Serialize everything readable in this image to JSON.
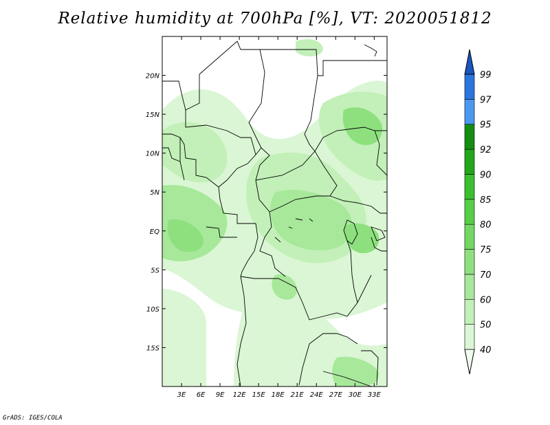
{
  "title": "Relative humidity at 700hPa [%], VT: 2020051812",
  "credit": "GrADS: IGES/COLA",
  "map": {
    "lon_ticks": [
      "3E",
      "6E",
      "9E",
      "12E",
      "15E",
      "18E",
      "21E",
      "24E",
      "27E",
      "30E",
      "33E"
    ],
    "lat_ticks": [
      "20N",
      "15N",
      "10N",
      "5N",
      "EQ",
      "5S",
      "10S",
      "15S"
    ],
    "lon_range": [
      0,
      35
    ],
    "lat_range": [
      -20,
      25
    ]
  },
  "colorbar": {
    "levels": [
      "40",
      "50",
      "60",
      "70",
      "75",
      "80",
      "85",
      "90",
      "92",
      "95",
      "97",
      "99"
    ],
    "colors": [
      "#f0fcee",
      "#daf6d4",
      "#c2f0b8",
      "#a7e89a",
      "#8ee07f",
      "#74d764",
      "#58cd48",
      "#3bbf31",
      "#23a61d",
      "#158d13",
      "#4d98ee",
      "#2c75dd",
      "#1a55c0"
    ]
  }
}
